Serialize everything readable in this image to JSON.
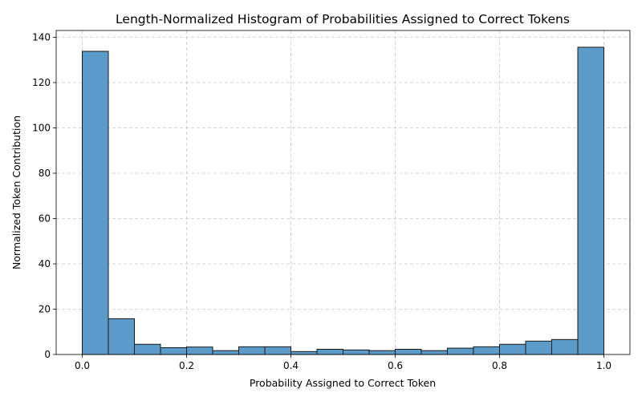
{
  "chart_data": {
    "type": "bar",
    "title": "Length-Normalized Histogram of Probabilities Assigned to Correct Tokens",
    "xlabel": "Probability Assigned to Correct Token",
    "ylabel": "Normalized Token Contribution",
    "xlim": [
      -0.05,
      1.05
    ],
    "ylim": [
      0,
      143
    ],
    "xticks": [
      "0.0",
      "0.2",
      "0.4",
      "0.6",
      "0.8",
      "1.0"
    ],
    "xtick_values": [
      0.0,
      0.2,
      0.4,
      0.6,
      0.8,
      1.0
    ],
    "yticks": [
      "0",
      "20",
      "40",
      "60",
      "80",
      "100",
      "120",
      "140"
    ],
    "ytick_values": [
      0,
      20,
      40,
      60,
      80,
      100,
      120,
      140
    ],
    "bin_edges": [
      0.0,
      0.05,
      0.1,
      0.15,
      0.2,
      0.25,
      0.3,
      0.35,
      0.4,
      0.45,
      0.5,
      0.55,
      0.6,
      0.65,
      0.7,
      0.75,
      0.8,
      0.85,
      0.9,
      0.95,
      1.0
    ],
    "values": [
      133.8,
      15.8,
      4.5,
      3.0,
      3.3,
      1.7,
      3.4,
      3.4,
      1.3,
      2.3,
      2.0,
      1.7,
      2.3,
      1.7,
      2.8,
      3.4,
      4.5,
      5.9,
      6.6,
      135.6
    ],
    "color": "#5b9bc9",
    "grid": true,
    "legend": "none"
  }
}
